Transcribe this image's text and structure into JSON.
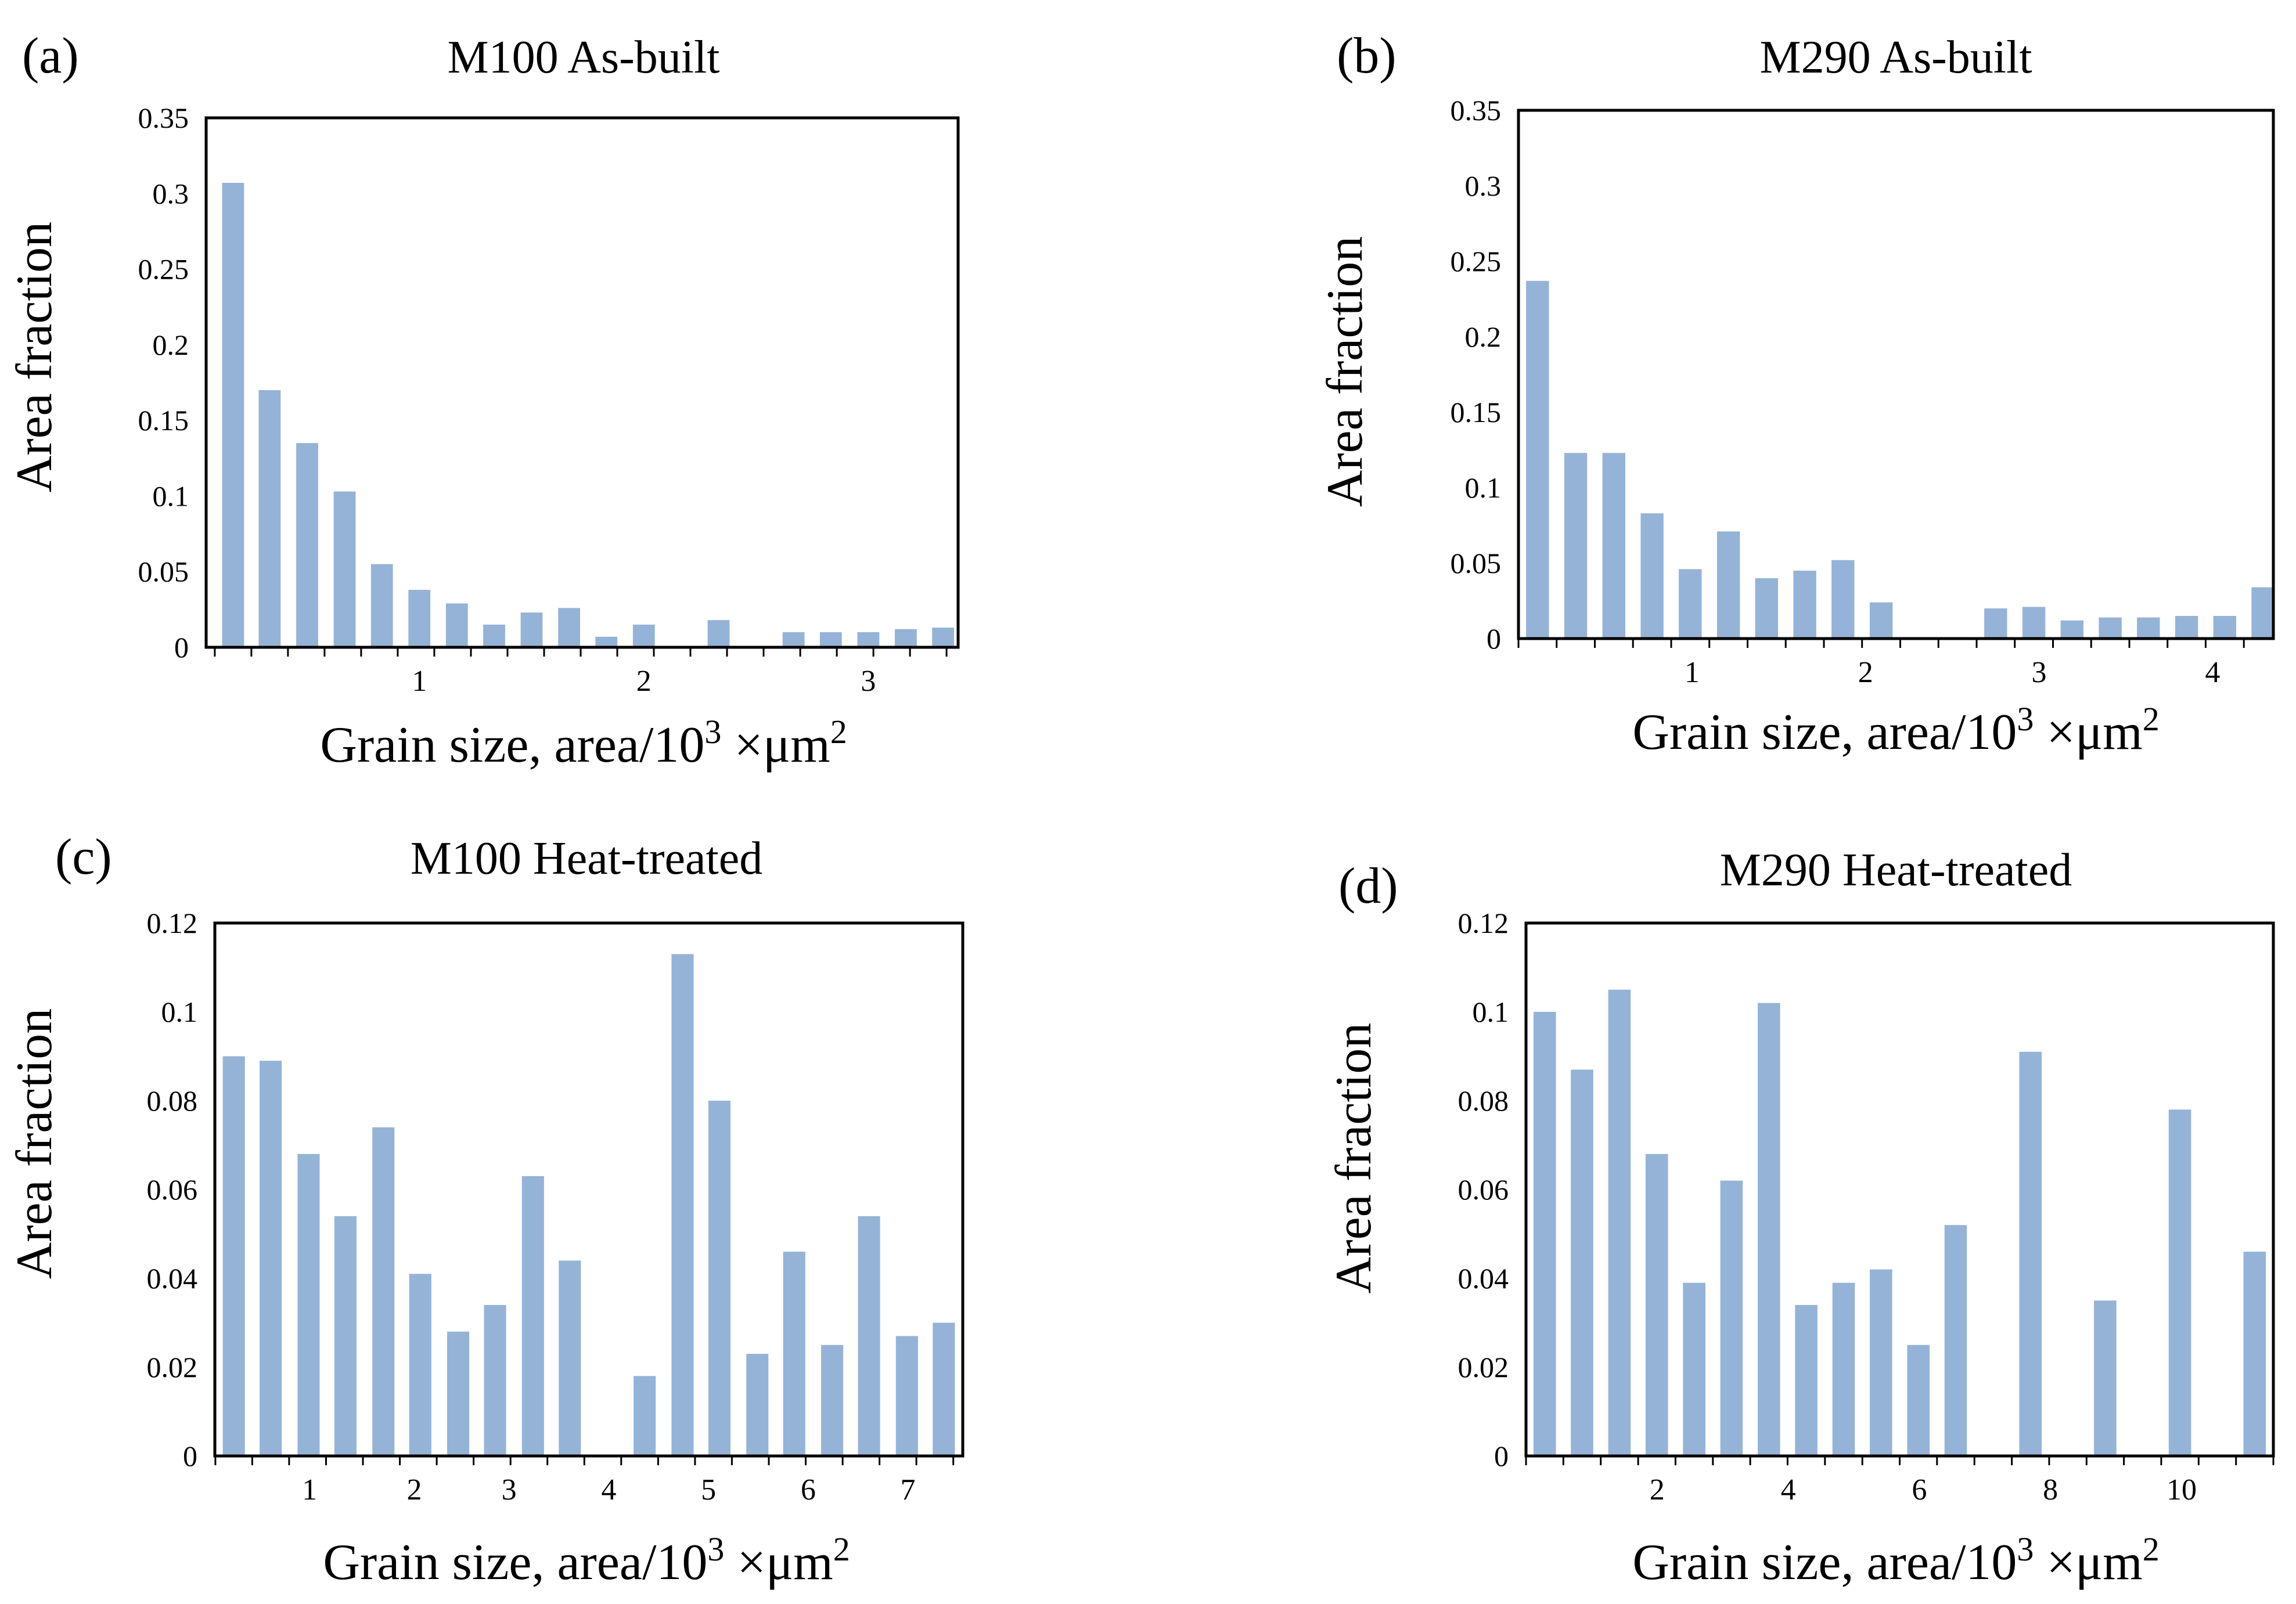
{
  "colors": {
    "bar": "#95b3d7",
    "frame": "#000000",
    "text": "#000000"
  },
  "chart_data": [
    {
      "id": "a",
      "panel_label": "(a)",
      "type": "bar",
      "title": "M100 As-built",
      "xlabel": "Grain size, area/10",
      "xlabel_sup": "3",
      "xlabel_tail": " ×μm",
      "xlabel_sup2": "2",
      "ylabel": "Area fraction",
      "ylim": [
        0,
        0.35
      ],
      "yticks": [
        "0",
        "0.05",
        "0.1",
        "0.15",
        "0.2",
        "0.25",
        "0.3",
        "0.35"
      ],
      "xlim": [
        0.05,
        3.4
      ],
      "xticks": [
        {
          "value": 1,
          "label": "1"
        },
        {
          "value": 2,
          "label": "2"
        },
        {
          "value": 3,
          "label": "3"
        }
      ],
      "x": [
        0.17,
        0.333,
        0.5,
        0.667,
        0.833,
        1.0,
        1.167,
        1.333,
        1.5,
        1.667,
        1.833,
        2.0,
        2.167,
        2.333,
        2.5,
        2.667,
        2.833,
        3.0,
        3.167,
        3.333
      ],
      "values": [
        0.307,
        0.17,
        0.135,
        0.103,
        0.055,
        0.038,
        0.029,
        0.015,
        0.023,
        0.026,
        0.007,
        0.015,
        0.0,
        0.018,
        0.0,
        0.01,
        0.01,
        0.01,
        0.012,
        0.013
      ]
    },
    {
      "id": "b",
      "panel_label": "(b)",
      "type": "bar",
      "title": "M290 As-built",
      "xlabel": "Grain size, area/10",
      "xlabel_sup": "3",
      "xlabel_tail": " ×μm",
      "xlabel_sup2": "2",
      "ylabel": "Area fraction",
      "ylim": [
        0,
        0.35
      ],
      "yticks": [
        "0",
        "0.05",
        "0.1",
        "0.15",
        "0.2",
        "0.25",
        "0.3",
        "0.35"
      ],
      "xlim": [
        0.0,
        4.35
      ],
      "xticks": [
        {
          "value": 1,
          "label": "1"
        },
        {
          "value": 2,
          "label": "2"
        },
        {
          "value": 3,
          "label": "3"
        },
        {
          "value": 4,
          "label": "4"
        }
      ],
      "x": [
        0.11,
        0.33,
        0.55,
        0.77,
        0.99,
        1.21,
        1.43,
        1.65,
        1.87,
        2.09,
        2.31,
        2.53,
        2.75,
        2.97,
        3.19,
        3.41,
        3.63,
        3.85,
        4.07,
        4.29
      ],
      "values": [
        0.237,
        0.123,
        0.123,
        0.083,
        0.046,
        0.071,
        0.04,
        0.045,
        0.052,
        0.024,
        0.0,
        0.0,
        0.02,
        0.021,
        0.012,
        0.014,
        0.014,
        0.015,
        0.015,
        0.034
      ]
    },
    {
      "id": "c",
      "panel_label": "(c)",
      "type": "bar",
      "title": "M100 Heat-treated",
      "xlabel": "Grain size, area/10",
      "xlabel_sup": "3",
      "xlabel_tail": " ×μm",
      "xlabel_sup2": "2",
      "ylabel": "Area fraction",
      "ylim": [
        0,
        0.12
      ],
      "yticks": [
        "0",
        "0.02",
        "0.04",
        "0.06",
        "0.08",
        "0.1",
        "0.12"
      ],
      "xlim": [
        0.0,
        7.5
      ],
      "xticks": [
        {
          "value": 0.95,
          "label": "1"
        },
        {
          "value": 2.0,
          "label": "2"
        },
        {
          "value": 2.95,
          "label": "3"
        },
        {
          "value": 3.95,
          "label": "4"
        },
        {
          "value": 4.95,
          "label": "5"
        },
        {
          "value": 5.95,
          "label": "6"
        },
        {
          "value": 6.95,
          "label": "7"
        }
      ],
      "x": [
        0.19,
        0.56,
        0.94,
        1.31,
        1.69,
        2.06,
        2.44,
        2.81,
        3.19,
        3.56,
        3.94,
        4.31,
        4.69,
        5.06,
        5.44,
        5.81,
        6.19,
        6.56,
        6.94,
        7.31
      ],
      "values": [
        0.09,
        0.089,
        0.068,
        0.054,
        0.074,
        0.041,
        0.028,
        0.034,
        0.063,
        0.044,
        0.0,
        0.018,
        0.113,
        0.08,
        0.023,
        0.046,
        0.025,
        0.054,
        0.027,
        0.03
      ]
    },
    {
      "id": "d",
      "panel_label": "(d)",
      "type": "bar",
      "title": "M290 Heat-treated",
      "xlabel": "Grain size, area/10",
      "xlabel_sup": "3",
      "xlabel_tail": " ×μm",
      "xlabel_sup2": "2",
      "ylabel": "Area fraction",
      "ylim": [
        0,
        0.12
      ],
      "yticks": [
        "0",
        "0.02",
        "0.04",
        "0.06",
        "0.08",
        "0.1",
        "0.12"
      ],
      "xlim": [
        0.0,
        11.4
      ],
      "xticks": [
        {
          "value": 2.0,
          "label": "2"
        },
        {
          "value": 4.0,
          "label": "4"
        },
        {
          "value": 6.0,
          "label": "6"
        },
        {
          "value": 8.0,
          "label": "8"
        },
        {
          "value": 10.0,
          "label": "10"
        }
      ],
      "x": [
        0.285,
        0.855,
        1.425,
        1.995,
        2.565,
        3.135,
        3.705,
        4.275,
        4.845,
        5.415,
        5.985,
        6.555,
        7.125,
        7.695,
        8.265,
        8.835,
        9.405,
        9.975,
        10.545,
        11.115
      ],
      "values": [
        0.1,
        0.087,
        0.105,
        0.068,
        0.039,
        0.062,
        0.102,
        0.034,
        0.039,
        0.042,
        0.025,
        0.052,
        0.0,
        0.091,
        0.0,
        0.035,
        0.0,
        0.078,
        0.0,
        0.046
      ]
    }
  ]
}
